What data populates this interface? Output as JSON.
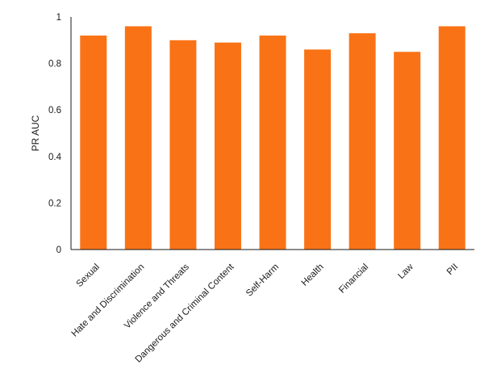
{
  "chart_data": {
    "type": "bar",
    "title": "",
    "xlabel": "",
    "ylabel": "PR AUC",
    "ylim": [
      0,
      1
    ],
    "yticks": [
      0,
      0.2,
      0.4,
      0.6,
      0.8,
      1
    ],
    "ytick_labels": [
      "0",
      "0.2",
      "0.4",
      "0.6",
      "0.8",
      "1"
    ],
    "grid": false,
    "legend": "none",
    "bar_color": "#f97316",
    "categories": [
      "Sexual",
      "Hate and Discrimination",
      "Violence and Threats",
      "Dangerous and Criminal Content",
      "Self-Harm",
      "Health",
      "Financial",
      "Law",
      "PII"
    ],
    "values": [
      0.92,
      0.96,
      0.9,
      0.89,
      0.92,
      0.86,
      0.93,
      0.85,
      0.96
    ]
  }
}
